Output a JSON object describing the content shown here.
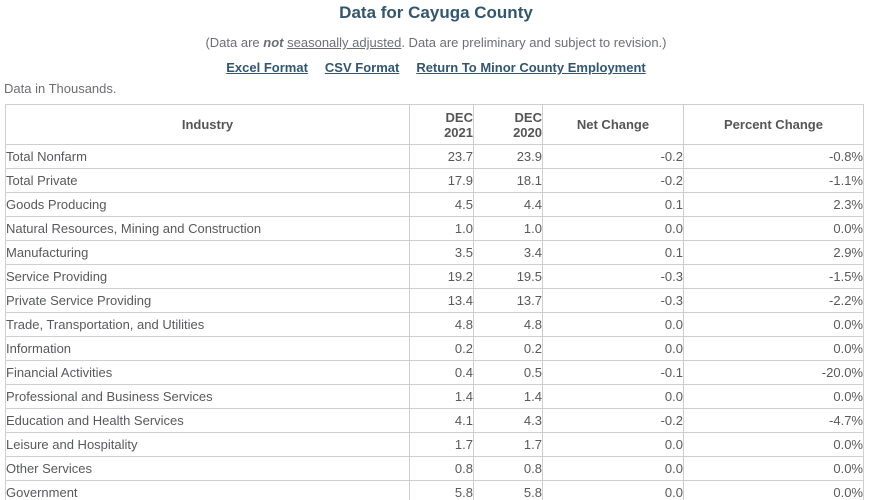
{
  "page": {
    "title": "Data for Cayuga County",
    "subtitle": {
      "prefix": "(Data are ",
      "emphasis": "not",
      "link_label": "seasonally adjusted",
      "suffix": ". Data are preliminary and subject to revision.)"
    },
    "links": [
      {
        "label": "Excel Format"
      },
      {
        "label": "CSV Format"
      },
      {
        "label": "Return To Minor County Employment"
      }
    ],
    "note": "Data in Thousands."
  },
  "colors": {
    "accent": "#33566f",
    "muted_text": "#6d6e71",
    "table_text": "#58595b",
    "border": "#cfcfcf"
  },
  "table": {
    "header": {
      "industry": "Industry",
      "col1_line1": "DEC",
      "col1_line2": "2021",
      "col2_line1": "DEC",
      "col2_line2": "2020",
      "net_change": "Net Change",
      "percent_change": "Percent Change"
    },
    "rows": [
      {
        "label": "Total Nonfarm",
        "indent": 0,
        "dec_2021": "23.7",
        "dec_2020": "23.9",
        "net_change": "-0.2",
        "percent_change": "-0.8%"
      },
      {
        "label": "Total Private",
        "indent": 0,
        "dec_2021": "17.9",
        "dec_2020": "18.1",
        "net_change": "-0.2",
        "percent_change": "-1.1%"
      },
      {
        "label": "Goods Producing",
        "indent": 1,
        "dec_2021": "4.5",
        "dec_2020": "4.4",
        "net_change": "0.1",
        "percent_change": "2.3%"
      },
      {
        "label": "Natural Resources, Mining and Construction",
        "indent": 2,
        "dec_2021": "1.0",
        "dec_2020": "1.0",
        "net_change": "0.0",
        "percent_change": "0.0%"
      },
      {
        "label": "Manufacturing",
        "indent": 2,
        "dec_2021": "3.5",
        "dec_2020": "3.4",
        "net_change": "0.1",
        "percent_change": "2.9%"
      },
      {
        "label": "Service Providing",
        "indent": 1,
        "dec_2021": "19.2",
        "dec_2020": "19.5",
        "net_change": "-0.3",
        "percent_change": "-1.5%"
      },
      {
        "label": "Private Service Providing",
        "indent": 0,
        "dec_2021": "13.4",
        "dec_2020": "13.7",
        "net_change": "-0.3",
        "percent_change": "-2.2%"
      },
      {
        "label": "Trade, Transportation, and Utilities",
        "indent": 2,
        "dec_2021": "4.8",
        "dec_2020": "4.8",
        "net_change": "0.0",
        "percent_change": "0.0%"
      },
      {
        "label": "Information",
        "indent": 2,
        "dec_2021": "0.2",
        "dec_2020": "0.2",
        "net_change": "0.0",
        "percent_change": "0.0%"
      },
      {
        "label": "Financial Activities",
        "indent": 2,
        "dec_2021": "0.4",
        "dec_2020": "0.5",
        "net_change": "-0.1",
        "percent_change": "-20.0%"
      },
      {
        "label": "Professional and Business Services",
        "indent": 2,
        "dec_2021": "1.4",
        "dec_2020": "1.4",
        "net_change": "0.0",
        "percent_change": "0.0%"
      },
      {
        "label": "Education and Health Services",
        "indent": 2,
        "dec_2021": "4.1",
        "dec_2020": "4.3",
        "net_change": "-0.2",
        "percent_change": "-4.7%"
      },
      {
        "label": "Leisure and Hospitality",
        "indent": 2,
        "dec_2021": "1.7",
        "dec_2020": "1.7",
        "net_change": "0.0",
        "percent_change": "0.0%"
      },
      {
        "label": "Other Services",
        "indent": 2,
        "dec_2021": "0.8",
        "dec_2020": "0.8",
        "net_change": "0.0",
        "percent_change": "0.0%"
      },
      {
        "label": "Government",
        "indent": 0,
        "dec_2021": "5.8",
        "dec_2020": "5.8",
        "net_change": "0.0",
        "percent_change": "0.0%"
      }
    ]
  }
}
